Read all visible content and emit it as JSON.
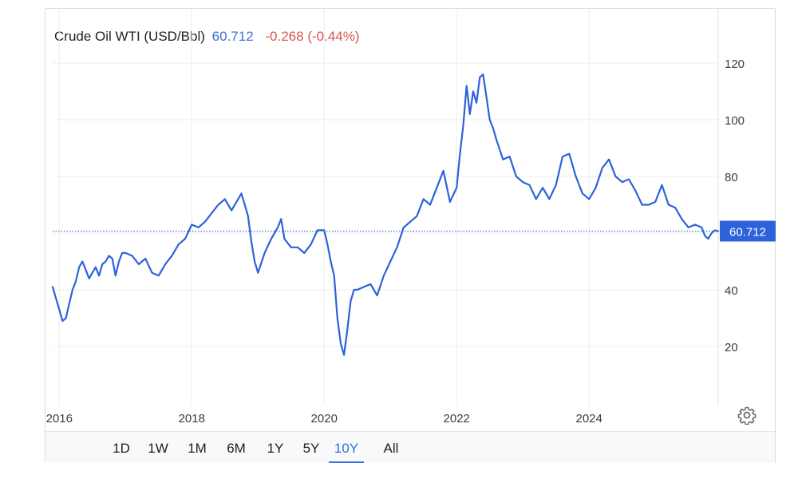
{
  "header": {
    "instrument": "Crude Oil WTI (USD/Bbl)",
    "price": "60.712",
    "change": "-0.268 (-0.44%)"
  },
  "colors": {
    "line": "#2d62d9",
    "price": "#3a6fd8",
    "change": "#d9534f",
    "marker": "#2d62d9"
  },
  "ranges": [
    {
      "label": "1D"
    },
    {
      "label": "1W"
    },
    {
      "label": "1M"
    },
    {
      "label": "6M"
    },
    {
      "label": "1Y"
    },
    {
      "label": "5Y"
    },
    {
      "label": "10Y",
      "active": true
    },
    {
      "label": "All"
    }
  ],
  "settings_icon": "gear-icon",
  "chart_data": {
    "type": "line",
    "title": "",
    "xlabel": "",
    "ylabel": "",
    "xlim": [
      2015.9,
      2025.95
    ],
    "ylim": [
      0,
      140
    ],
    "x_ticks": [
      2016,
      2018,
      2020,
      2022,
      2024
    ],
    "x_tick_labels": [
      "2016",
      "2018",
      "2020",
      "2022",
      "2024"
    ],
    "y_ticks": [
      20,
      40,
      60,
      80,
      100,
      120
    ],
    "y_tick_labels": [
      "20",
      "40",
      "60",
      "80",
      "100",
      "120"
    ],
    "grid": true,
    "last_value": 60.712,
    "last_value_label": "60.712",
    "series": [
      {
        "x": [
          2015.9,
          2015.95,
          2016.0,
          2016.05,
          2016.1,
          2016.15,
          2016.2,
          2016.25,
          2016.3,
          2016.35,
          2016.4,
          2016.45,
          2016.5,
          2016.55,
          2016.6,
          2016.65,
          2016.7,
          2016.75,
          2016.8,
          2016.85,
          2016.9,
          2016.95,
          2017.0,
          2017.1,
          2017.2,
          2017.3,
          2017.4,
          2017.5,
          2017.6,
          2017.7,
          2017.8,
          2017.9,
          2018.0,
          2018.1,
          2018.2,
          2018.3,
          2018.4,
          2018.5,
          2018.6,
          2018.7,
          2018.75,
          2018.8,
          2018.85,
          2018.9,
          2018.95,
          2019.0,
          2019.1,
          2019.2,
          2019.3,
          2019.35,
          2019.4,
          2019.5,
          2019.6,
          2019.7,
          2019.8,
          2019.9,
          2020.0,
          2020.05,
          2020.1,
          2020.15,
          2020.2,
          2020.25,
          2020.3,
          2020.35,
          2020.4,
          2020.45,
          2020.5,
          2020.6,
          2020.7,
          2020.8,
          2020.9,
          2021.0,
          2021.1,
          2021.2,
          2021.3,
          2021.4,
          2021.5,
          2021.6,
          2021.7,
          2021.8,
          2021.9,
          2022.0,
          2022.05,
          2022.1,
          2022.15,
          2022.2,
          2022.25,
          2022.3,
          2022.35,
          2022.4,
          2022.45,
          2022.5,
          2022.55,
          2022.6,
          2022.7,
          2022.8,
          2022.9,
          2023.0,
          2023.1,
          2023.2,
          2023.3,
          2023.4,
          2023.5,
          2023.6,
          2023.7,
          2023.8,
          2023.9,
          2024.0,
          2024.1,
          2024.2,
          2024.3,
          2024.4,
          2024.5,
          2024.6,
          2024.7,
          2024.8,
          2024.9,
          2025.0,
          2025.1,
          2025.2,
          2025.3,
          2025.4,
          2025.5,
          2025.6,
          2025.7,
          2025.75,
          2025.8,
          2025.85,
          2025.9,
          2025.95
        ],
        "y": [
          41,
          37,
          33,
          29,
          30,
          35,
          40,
          43,
          48,
          50,
          47,
          44,
          46,
          48,
          45,
          49,
          50,
          52,
          51,
          45,
          50,
          53,
          53,
          52,
          49,
          51,
          46,
          45,
          49,
          52,
          56,
          58,
          63,
          62,
          64,
          67,
          70,
          72,
          68,
          72,
          74,
          70,
          66,
          57,
          50,
          46,
          53,
          58,
          62,
          65,
          58,
          55,
          55,
          53,
          56,
          61,
          61,
          56,
          50,
          45,
          30,
          21,
          17,
          26,
          36,
          40,
          40,
          41,
          42,
          38,
          45,
          50,
          55,
          62,
          64,
          66,
          72,
          70,
          76,
          82,
          71,
          76,
          88,
          98,
          112,
          102,
          110,
          106,
          115,
          116,
          108,
          100,
          97,
          93,
          86,
          87,
          80,
          78,
          77,
          72,
          76,
          72,
          77,
          87,
          88,
          80,
          74,
          72,
          76,
          83,
          86,
          80,
          78,
          79,
          75,
          70,
          70,
          71,
          77,
          70,
          69,
          65,
          62,
          63,
          62,
          59,
          58,
          60,
          61,
          60.712
        ]
      }
    ]
  }
}
